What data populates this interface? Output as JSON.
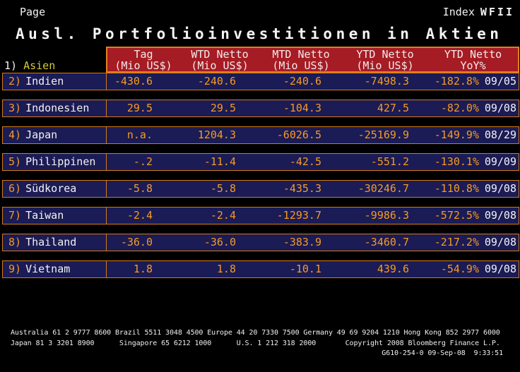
{
  "header": {
    "page_label": "Page",
    "index_label": "Index",
    "ticker": "WFII"
  },
  "title": "Ausl. Portfolioinvestitionen in Aktien",
  "region": {
    "number": "1)",
    "label": "Asien"
  },
  "table": {
    "columns": [
      {
        "line1": "Tag",
        "line2": "(Mio US$)"
      },
      {
        "line1": "WTD Netto",
        "line2": "(Mio US$)"
      },
      {
        "line1": "MTD Netto",
        "line2": "(Mio US$)"
      },
      {
        "line1": "YTD Netto",
        "line2": "(Mio US$)"
      },
      {
        "line1": "YTD Netto",
        "line2": "YoY%"
      }
    ],
    "rows": [
      {
        "number": "2)",
        "name": "Indien",
        "tag": "-430.6",
        "wtd": "-240.6",
        "mtd": "-240.6",
        "ytd": "-7498.3",
        "yoy": "-182.8%",
        "date": "09/05"
      },
      {
        "number": "3)",
        "name": "Indonesien",
        "tag": "29.5",
        "wtd": "29.5",
        "mtd": "-104.3",
        "ytd": "427.5",
        "yoy": "-82.0%",
        "date": "09/08"
      },
      {
        "number": "4)",
        "name": "Japan",
        "tag": "n.a.",
        "wtd": "1204.3",
        "mtd": "-6026.5",
        "ytd": "-25169.9",
        "yoy": "-149.9%",
        "date": "08/29"
      },
      {
        "number": "5)",
        "name": "Philippinen",
        "tag": "-.2",
        "wtd": "-11.4",
        "mtd": "-42.5",
        "ytd": "-551.2",
        "yoy": "-130.1%",
        "date": "09/09"
      },
      {
        "number": "6)",
        "name": "Südkorea",
        "tag": "-5.8",
        "wtd": "-5.8",
        "mtd": "-435.3",
        "ytd": "-30246.7",
        "yoy": "-110.8%",
        "date": "09/08"
      },
      {
        "number": "7)",
        "name": "Taiwan",
        "tag": "-2.4",
        "wtd": "-2.4",
        "mtd": "-1293.7",
        "ytd": "-9986.3",
        "yoy": "-572.5%",
        "date": "09/08"
      },
      {
        "number": "8)",
        "name": "Thailand",
        "tag": "-36.0",
        "wtd": "-36.0",
        "mtd": "-383.9",
        "ytd": "-3460.7",
        "yoy": "-217.2%",
        "date": "09/08"
      },
      {
        "number": "9)",
        "name": "Vietnam",
        "tag": "1.8",
        "wtd": "1.8",
        "mtd": "-10.1",
        "ytd": "439.6",
        "yoy": "-54.9%",
        "date": "09/08"
      }
    ]
  },
  "footer": {
    "line1": "Australia 61 2 9777 8600 Brazil 5511 3048 4500 Europe 44 20 7330 7500 Germany 49 69 9204 1210 Hong Kong 852 2977 6000",
    "line2": "Japan 81 3 3201 8900      Singapore 65 6212 1000      U.S. 1 212 318 2000       Copyright 2008 Bloomberg Finance L.P.",
    "line3": "G610-254-0 09-Sep-08  9:33:51"
  },
  "colors": {
    "background": "#000000",
    "row_fill": "#1b1b55",
    "header_fill": "#a61c24",
    "border_orange": "#d57b16",
    "value_orange": "#f59b22",
    "label_yellow": "#d4cb30",
    "text_white": "#f2f2f2"
  }
}
